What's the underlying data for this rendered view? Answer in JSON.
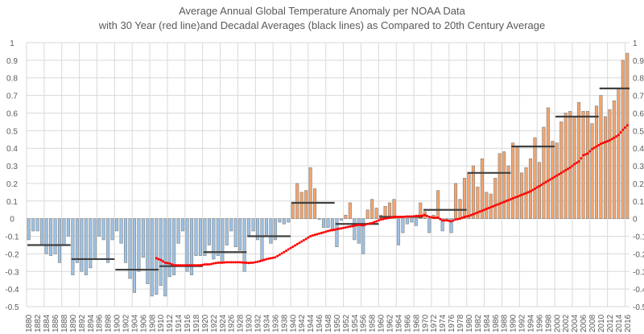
{
  "chart_data": {
    "type": "bar",
    "title": "Average Annual Global Temperature Anomaly per NOAA Data",
    "subtitle": "with 30 Year (red line)and Decadal Averages (black lines) as Compared to 20th Century Average",
    "xlabel": "",
    "ylabel": "",
    "ylim": [
      -0.5,
      1
    ],
    "yticks": [
      1,
      0.9,
      0.8,
      0.7,
      0.6,
      0.5,
      0.4,
      0.3,
      0.2,
      0.1,
      0,
      -0.1,
      -0.2,
      -0.3,
      -0.4,
      -0.5
    ],
    "grid": true,
    "legend": "none",
    "colors": {
      "positive": "#f4a46c",
      "negative": "#9dc3e6",
      "bar_border": "#7f7f7f",
      "decadal": "#404040",
      "thirty_year": "#ff0000"
    },
    "x_start": 1880,
    "values": [
      -0.12,
      -0.07,
      -0.07,
      -0.15,
      -0.2,
      -0.21,
      -0.2,
      -0.25,
      -0.15,
      -0.1,
      -0.32,
      -0.25,
      -0.3,
      -0.32,
      -0.28,
      -0.23,
      -0.1,
      -0.12,
      -0.25,
      -0.12,
      -0.07,
      -0.14,
      -0.25,
      -0.34,
      -0.42,
      -0.3,
      -0.22,
      -0.37,
      -0.44,
      -0.43,
      -0.38,
      -0.44,
      -0.33,
      -0.32,
      -0.14,
      -0.07,
      -0.3,
      -0.32,
      -0.21,
      -0.21,
      -0.21,
      -0.15,
      -0.23,
      -0.21,
      -0.25,
      -0.15,
      -0.07,
      -0.16,
      -0.18,
      -0.3,
      -0.1,
      -0.07,
      -0.12,
      -0.24,
      -0.1,
      -0.14,
      -0.12,
      -0.02,
      -0.03,
      -0.02,
      0.09,
      0.2,
      0.15,
      0.16,
      0.29,
      0.17,
      -0.005,
      -0.05,
      -0.05,
      -0.07,
      -0.16,
      -0.01,
      0.02,
      0.09,
      -0.12,
      -0.14,
      -0.2,
      0.05,
      0.11,
      0.06,
      0.02,
      0.07,
      0.09,
      0.11,
      -0.15,
      -0.08,
      -0.03,
      -0.02,
      -0.04,
      0.09,
      0.04,
      -0.08,
      0.02,
      0.16,
      -0.07,
      -0.01,
      -0.08,
      0.2,
      0.11,
      0.23,
      0.26,
      0.3,
      0.18,
      0.34,
      0.15,
      0.14,
      0.23,
      0.37,
      0.38,
      0.3,
      0.43,
      0.41,
      0.26,
      0.29,
      0.34,
      0.46,
      0.32,
      0.52,
      0.63,
      0.44,
      0.43,
      0.55,
      0.6,
      0.61,
      0.58,
      0.66,
      0.61,
      0.61,
      0.54,
      0.64,
      0.7,
      0.58,
      0.62,
      0.67,
      0.74,
      0.9,
      0.94
    ],
    "decadal_averages": [
      {
        "start": 1880,
        "end": 1889,
        "value": -0.15
      },
      {
        "start": 1890,
        "end": 1899,
        "value": -0.23
      },
      {
        "start": 1900,
        "end": 1909,
        "value": -0.29
      },
      {
        "start": 1910,
        "end": 1919,
        "value": -0.27
      },
      {
        "start": 1920,
        "end": 1929,
        "value": -0.19
      },
      {
        "start": 1930,
        "end": 1939,
        "value": -0.1
      },
      {
        "start": 1940,
        "end": 1949,
        "value": 0.09
      },
      {
        "start": 1950,
        "end": 1959,
        "value": -0.03
      },
      {
        "start": 1960,
        "end": 1969,
        "value": 0.01
      },
      {
        "start": 1970,
        "end": 1979,
        "value": 0.05
      },
      {
        "start": 1980,
        "end": 1989,
        "value": 0.26
      },
      {
        "start": 1990,
        "end": 1999,
        "value": 0.41
      },
      {
        "start": 2000,
        "end": 2009,
        "value": 0.58
      },
      {
        "start": 2010,
        "end": 2016,
        "value": 0.74
      }
    ],
    "thirty_year_start": 1909,
    "thirty_year_avg": [
      -0.225,
      -0.235,
      -0.25,
      -0.255,
      -0.265,
      -0.265,
      -0.265,
      -0.265,
      -0.265,
      -0.265,
      -0.265,
      -0.26,
      -0.26,
      -0.255,
      -0.25,
      -0.25,
      -0.248,
      -0.248,
      -0.248,
      -0.248,
      -0.25,
      -0.252,
      -0.25,
      -0.245,
      -0.238,
      -0.23,
      -0.225,
      -0.22,
      -0.205,
      -0.19,
      -0.175,
      -0.16,
      -0.145,
      -0.13,
      -0.115,
      -0.1,
      -0.092,
      -0.085,
      -0.078,
      -0.07,
      -0.065,
      -0.06,
      -0.055,
      -0.05,
      -0.045,
      -0.04,
      -0.035,
      -0.038,
      -0.03,
      -0.025,
      -0.015,
      -0.005,
      0.0,
      0.005,
      0.01,
      0.01,
      0.01,
      0.012,
      0.012,
      0.015,
      0.015,
      0.02,
      0.01,
      0.005,
      0.005,
      -0.01,
      -0.01,
      -0.015,
      -0.005,
      0.0,
      0.01,
      0.015,
      0.025,
      0.035,
      0.045,
      0.055,
      0.065,
      0.075,
      0.085,
      0.095,
      0.105,
      0.115,
      0.125,
      0.135,
      0.145,
      0.155,
      0.17,
      0.185,
      0.2,
      0.215,
      0.23,
      0.245,
      0.26,
      0.275,
      0.29,
      0.31,
      0.325,
      0.36,
      0.37,
      0.395,
      0.41,
      0.425,
      0.435,
      0.445,
      0.46,
      0.475,
      0.505,
      0.53
    ]
  }
}
